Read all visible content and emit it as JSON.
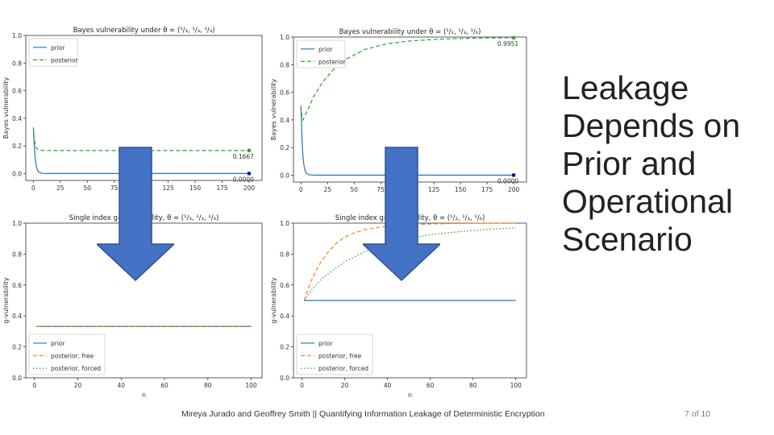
{
  "slide": {
    "title_lines": [
      "Leakage",
      "Depends on",
      "Prior and",
      "Operational",
      "Scenario"
    ],
    "footer": "Mireya Jurado and Geoffrey Smith || Quantifying Information Leakage of Deterministic Encryption",
    "page_number": "7 of 10"
  },
  "colors": {
    "prior": "#1f77b4",
    "posterior": "#2ca02c",
    "posterior_free": "#ff7f0e",
    "posterior_forced": "#2ca02c",
    "arrow_fill": "#4472c4",
    "arrow_stroke": "#2f528f"
  },
  "chart_data": [
    {
      "type": "line",
      "title": "Bayes vulnerability under θ = (¹/₃, ¹/₃, ¹/₃)",
      "xlabel": "",
      "ylabel": "Bayes vulnerability",
      "xlim": [
        -7,
        212
      ],
      "ylim": [
        -0.05,
        1.0
      ],
      "xticks": [
        "0",
        "25",
        "50",
        "75",
        "100",
        "125",
        "150",
        "175",
        "200"
      ],
      "xtick_values": [
        0,
        25,
        50,
        75,
        100,
        125,
        150,
        175,
        200
      ],
      "yticks": [
        "0.0",
        "0.2",
        "0.4",
        "0.6",
        "0.8",
        "1.0"
      ],
      "ytick_values": [
        0.0,
        0.2,
        0.4,
        0.6,
        0.8,
        1.0
      ],
      "legend": "top-left",
      "grid": false,
      "series": [
        {
          "name": "prior",
          "style": "solid",
          "color_key": "prior",
          "x": [
            0,
            1,
            2,
            3,
            4,
            5,
            7,
            10,
            15,
            25,
            50,
            100,
            200
          ],
          "values": [
            0.333,
            0.18,
            0.09,
            0.045,
            0.022,
            0.011,
            0.004,
            0.001,
            0.0,
            0.0,
            0.0,
            0.0,
            0.0
          ]
        },
        {
          "name": "posterior",
          "style": "dashed",
          "color_key": "posterior",
          "x": [
            0,
            1,
            2,
            3,
            4,
            6,
            10,
            25,
            50,
            100,
            200
          ],
          "values": [
            0.333,
            0.24,
            0.2,
            0.183,
            0.175,
            0.17,
            0.167,
            0.1667,
            0.1667,
            0.1667,
            0.1667
          ]
        }
      ],
      "annotations": [
        {
          "text": "0.1667",
          "x": 200,
          "y": 0.1667,
          "color_key": "posterior"
        },
        {
          "text": "0.0000",
          "x": 200,
          "y": 0.0,
          "color_key": "prior"
        }
      ]
    },
    {
      "type": "line",
      "title": "Bayes vulnerability under θ = (¹/₂, ¹/₃, ¹/₆)",
      "xlabel": "",
      "ylabel": "Bayes vulnerability",
      "xlim": [
        -7,
        212
      ],
      "ylim": [
        -0.05,
        1.0
      ],
      "xticks": [
        "0",
        "25",
        "50",
        "75",
        "100",
        "125",
        "150",
        "175",
        "200"
      ],
      "xtick_values": [
        0,
        25,
        50,
        75,
        100,
        125,
        150,
        175,
        200
      ],
      "yticks": [
        "0.0",
        "0.2",
        "0.4",
        "0.6",
        "0.8",
        "1.0"
      ],
      "ytick_values": [
        0.0,
        0.2,
        0.4,
        0.6,
        0.8,
        1.0
      ],
      "legend": "top-left",
      "grid": false,
      "series": [
        {
          "name": "prior",
          "style": "solid",
          "color_key": "prior",
          "x": [
            0,
            1,
            2,
            3,
            4,
            5,
            7,
            10,
            15,
            25,
            50,
            100,
            200
          ],
          "values": [
            0.5,
            0.25,
            0.125,
            0.063,
            0.031,
            0.016,
            0.004,
            0.001,
            0.0,
            0.0,
            0.0,
            0.0,
            0.0
          ]
        },
        {
          "name": "posterior",
          "style": "dashed",
          "color_key": "posterior",
          "x": [
            0,
            1,
            2,
            3,
            5,
            8,
            12,
            20,
            30,
            40,
            60,
            80,
            100,
            130,
            160,
            200
          ],
          "values": [
            0.5,
            0.42,
            0.4,
            0.42,
            0.45,
            0.5,
            0.57,
            0.67,
            0.76,
            0.83,
            0.91,
            0.95,
            0.97,
            0.985,
            0.992,
            0.9951
          ]
        }
      ],
      "annotations": [
        {
          "text": "0.9951",
          "x": 200,
          "y": 0.9951,
          "color_key": "posterior"
        },
        {
          "text": "0.0000",
          "x": 200,
          "y": 0.0,
          "color_key": "prior"
        }
      ]
    },
    {
      "type": "line",
      "title": "Single index g-vulnerability, θ = (¹/₃, ¹/₃, ¹/₃)",
      "xlabel": "n",
      "ylabel": "g-vulnerability",
      "xlim": [
        -4,
        105
      ],
      "ylim": [
        0.0,
        1.0
      ],
      "xticks": [
        "0",
        "20",
        "40",
        "60",
        "80",
        "100"
      ],
      "xtick_values": [
        0,
        20,
        40,
        60,
        80,
        100
      ],
      "yticks": [
        "0.0",
        "0.2",
        "0.4",
        "0.6",
        "0.8",
        "1.0"
      ],
      "ytick_values": [
        0.0,
        0.2,
        0.4,
        0.6,
        0.8,
        1.0
      ],
      "legend": "bottom-left",
      "grid": false,
      "series": [
        {
          "name": "prior",
          "style": "solid",
          "color_key": "prior",
          "x": [
            1,
            100
          ],
          "values": [
            0.333,
            0.333
          ]
        },
        {
          "name": "posterior, free",
          "style": "dashed",
          "color_key": "posterior_free",
          "x": [
            1,
            100
          ],
          "values": [
            0.333,
            0.333
          ]
        },
        {
          "name": "posterior, forced",
          "style": "dotted",
          "color_key": "posterior_forced",
          "x": [
            1,
            100
          ],
          "values": [
            0.333,
            0.333
          ]
        }
      ],
      "annotations": []
    },
    {
      "type": "line",
      "title": "Single index g-vulnerability, θ = (¹/₂, ¹/₃, ¹/₆)",
      "xlabel": "n",
      "ylabel": "g-vulnerability",
      "xlim": [
        -4,
        105
      ],
      "ylim": [
        0.0,
        1.0
      ],
      "xticks": [
        "0",
        "20",
        "40",
        "60",
        "80",
        "100"
      ],
      "xtick_values": [
        0,
        20,
        40,
        60,
        80,
        100
      ],
      "yticks": [
        "0.0",
        "0.2",
        "0.4",
        "0.6",
        "0.8",
        "1.0"
      ],
      "ytick_values": [
        0.0,
        0.2,
        0.4,
        0.6,
        0.8,
        1.0
      ],
      "legend": "bottom-left",
      "grid": false,
      "series": [
        {
          "name": "prior",
          "style": "solid",
          "color_key": "prior",
          "x": [
            1,
            100
          ],
          "values": [
            0.5,
            0.5
          ]
        },
        {
          "name": "posterior, free",
          "style": "dashed",
          "color_key": "posterior_free",
          "x": [
            1,
            3,
            5,
            8,
            12,
            16,
            20,
            25,
            30,
            40,
            50,
            60,
            70,
            80,
            90,
            100
          ],
          "values": [
            0.5,
            0.58,
            0.65,
            0.73,
            0.81,
            0.87,
            0.91,
            0.94,
            0.96,
            0.98,
            0.99,
            0.995,
            0.998,
            0.999,
            1.0,
            1.0
          ]
        },
        {
          "name": "posterior, forced",
          "style": "dotted",
          "color_key": "posterior_forced",
          "x": [
            1,
            5,
            10,
            15,
            20,
            30,
            40,
            50,
            60,
            70,
            80,
            90,
            100
          ],
          "values": [
            0.5,
            0.58,
            0.65,
            0.7,
            0.75,
            0.82,
            0.87,
            0.9,
            0.925,
            0.94,
            0.952,
            0.962,
            0.97
          ]
        }
      ],
      "annotations": []
    }
  ]
}
